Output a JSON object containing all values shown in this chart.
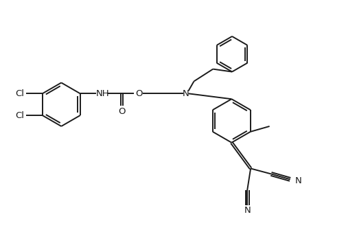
{
  "bg_color": "#ffffff",
  "line_color": "#1a1a1a",
  "lw": 1.4,
  "fs": 9.5,
  "figsize": [
    5.04,
    3.54
  ],
  "dpi": 100,
  "xlim": [
    0,
    504
  ],
  "ylim": [
    0,
    354
  ]
}
